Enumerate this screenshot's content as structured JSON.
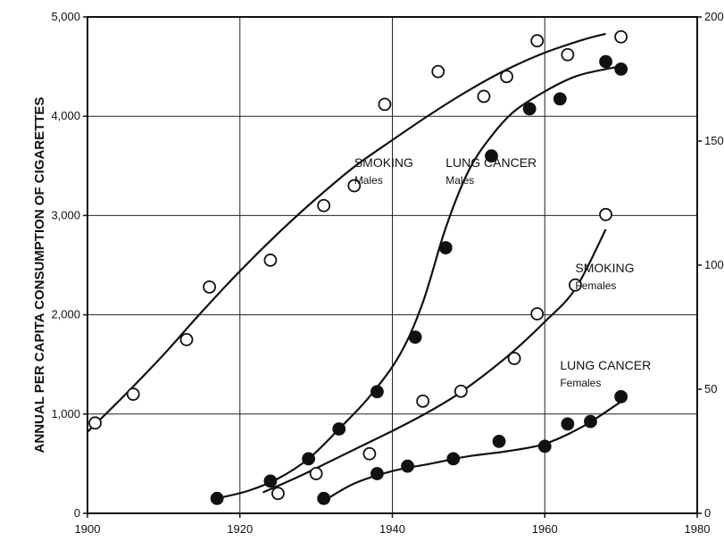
{
  "chart_data": {
    "type": "scatter",
    "title": "",
    "ylabel": "ANNUAL PER CAPITA CONSUMPTION OF CIGARETTES",
    "xlabel": "",
    "xlim": [
      1900,
      1980
    ],
    "ylim": [
      0,
      5000
    ],
    "y2lim": [
      0,
      200
    ],
    "xticks": [
      "1900",
      "1920",
      "1940",
      "1960",
      "1980"
    ],
    "yticks": [
      "0",
      "1,000",
      "2,000",
      "3,000",
      "4,000",
      "5,000"
    ],
    "y2ticks": [
      "0",
      "50",
      "100",
      "150",
      "200"
    ],
    "series": [
      {
        "label_line1": "SMOKING",
        "label_line2": "Males",
        "axis": "left",
        "marker": "open",
        "points": [
          [
            1901,
            910
          ],
          [
            1906,
            1200
          ],
          [
            1913,
            1750
          ],
          [
            1916,
            2280
          ],
          [
            1924,
            2550
          ],
          [
            1931,
            3100
          ],
          [
            1935,
            3300
          ],
          [
            1939,
            4120
          ],
          [
            1946,
            4450
          ],
          [
            1952,
            4200
          ],
          [
            1955,
            4400
          ],
          [
            1959,
            4760
          ],
          [
            1963,
            4620
          ],
          [
            1970,
            4800
          ]
        ],
        "trend": [
          [
            1900,
            820
          ],
          [
            1905,
            1200
          ],
          [
            1910,
            1600
          ],
          [
            1915,
            2030
          ],
          [
            1920,
            2440
          ],
          [
            1925,
            2820
          ],
          [
            1930,
            3170
          ],
          [
            1935,
            3490
          ],
          [
            1940,
            3760
          ],
          [
            1945,
            4020
          ],
          [
            1950,
            4260
          ],
          [
            1955,
            4470
          ],
          [
            1960,
            4640
          ],
          [
            1965,
            4770
          ],
          [
            1968,
            4830
          ]
        ]
      },
      {
        "label_line1": "LUNG CANCER",
        "label_line2": "Males",
        "axis": "right",
        "marker": "filled",
        "points": [
          [
            1917,
            6
          ],
          [
            1924,
            13
          ],
          [
            1929,
            22
          ],
          [
            1933,
            34
          ],
          [
            1938,
            49
          ],
          [
            1943,
            71
          ],
          [
            1947,
            107
          ],
          [
            1953,
            144
          ],
          [
            1958,
            163
          ],
          [
            1962,
            167
          ],
          [
            1968,
            182
          ],
          [
            1970,
            179
          ]
        ],
        "trend": [
          [
            1917,
            6
          ],
          [
            1921,
            9
          ],
          [
            1925,
            14
          ],
          [
            1929,
            22
          ],
          [
            1933,
            34
          ],
          [
            1937,
            47
          ],
          [
            1941,
            64
          ],
          [
            1944,
            85
          ],
          [
            1947,
            115
          ],
          [
            1950,
            138
          ],
          [
            1953,
            152
          ],
          [
            1956,
            162
          ],
          [
            1960,
            170
          ],
          [
            1964,
            176
          ],
          [
            1968,
            179
          ],
          [
            1970,
            180
          ]
        ]
      },
      {
        "label_line1": "SMOKING",
        "label_line2": "Females",
        "axis": "left",
        "marker": "open",
        "points": [
          [
            1925,
            200
          ],
          [
            1930,
            400
          ],
          [
            1937,
            600
          ],
          [
            1944,
            1130
          ],
          [
            1949,
            1230
          ],
          [
            1956,
            1560
          ],
          [
            1959,
            2010
          ],
          [
            1964,
            2300
          ],
          [
            1968,
            3010
          ]
        ],
        "trend": [
          [
            1923,
            210
          ],
          [
            1928,
            380
          ],
          [
            1932,
            530
          ],
          [
            1936,
            680
          ],
          [
            1940,
            830
          ],
          [
            1944,
            990
          ],
          [
            1948,
            1170
          ],
          [
            1952,
            1390
          ],
          [
            1956,
            1640
          ],
          [
            1960,
            1930
          ],
          [
            1964,
            2260
          ],
          [
            1968,
            2860
          ]
        ]
      },
      {
        "label_line1": "LUNG CANCER",
        "label_line2": "Females",
        "axis": "right",
        "marker": "filled",
        "points": [
          [
            1931,
            6
          ],
          [
            1938,
            16
          ],
          [
            1942,
            19
          ],
          [
            1948,
            22
          ],
          [
            1954,
            29
          ],
          [
            1960,
            27
          ],
          [
            1963,
            36
          ],
          [
            1966,
            37
          ],
          [
            1970,
            47
          ]
        ],
        "trend": [
          [
            1931,
            5
          ],
          [
            1935,
            12
          ],
          [
            1940,
            17
          ],
          [
            1945,
            20
          ],
          [
            1950,
            23
          ],
          [
            1955,
            25
          ],
          [
            1960,
            28
          ],
          [
            1965,
            35
          ],
          [
            1970,
            45
          ]
        ]
      }
    ],
    "labels": [
      {
        "series": 0,
        "at": [
          1935,
          3490
        ],
        "axis": "left"
      },
      {
        "series": 1,
        "at": [
          1947,
          3490
        ],
        "axis": "left"
      },
      {
        "series": 2,
        "at": [
          1964,
          2430
        ],
        "axis": "left"
      },
      {
        "series": 3,
        "at": [
          1962,
          1450
        ],
        "axis": "left"
      }
    ]
  }
}
